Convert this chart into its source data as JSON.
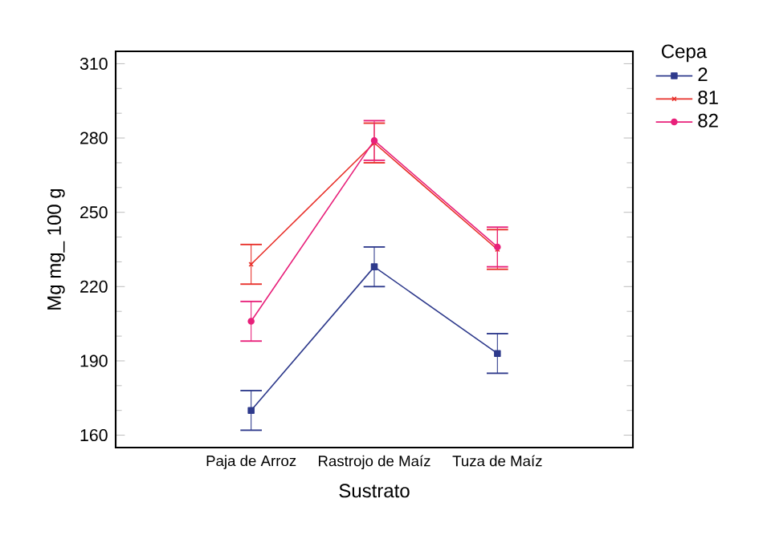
{
  "chart_data": {
    "type": "line",
    "xlabel": "Sustrato",
    "ylabel": "Mg mg_ 100 g",
    "legend_title": "Cepa",
    "categories": [
      "Paja de Arroz",
      "Rastrojo de Maíz",
      "Tuza de Maíz"
    ],
    "ylim": [
      155,
      315
    ],
    "yticks": [
      160,
      190,
      220,
      250,
      280,
      310
    ],
    "grid": false,
    "legend": "top right",
    "series": [
      {
        "name": "2",
        "color": "#2e3a8c",
        "marker": "square",
        "values": [
          170,
          228,
          193
        ],
        "errors": [
          8,
          8,
          8
        ]
      },
      {
        "name": "81",
        "color": "#e8302a",
        "marker": "cross",
        "values": [
          229,
          278,
          235
        ],
        "errors": [
          8,
          8,
          8
        ]
      },
      {
        "name": "82",
        "color": "#e8207a",
        "marker": "circle",
        "values": [
          206,
          279,
          236
        ],
        "errors": [
          8,
          8,
          8
        ]
      }
    ]
  }
}
